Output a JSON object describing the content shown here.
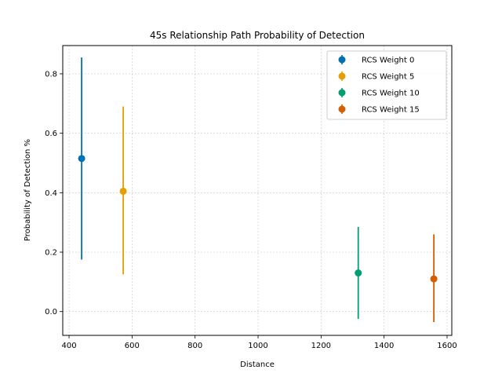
{
  "chart_data": {
    "type": "scatter",
    "title": "45s Relationship Path Probability of Detection",
    "xlabel": "Distance",
    "ylabel": "Probability of Detection %",
    "xlim": [
      380,
      1615
    ],
    "ylim": [
      -0.08,
      0.895
    ],
    "xticks": [
      400,
      600,
      800,
      1000,
      1200,
      1400,
      1600
    ],
    "yticks": [
      0.0,
      0.2,
      0.4,
      0.6,
      0.8
    ],
    "xtick_labels": [
      "400",
      "600",
      "800",
      "1000",
      "1200",
      "1400",
      "1600"
    ],
    "ytick_labels": [
      "0.0",
      "0.2",
      "0.4",
      "0.6",
      "0.8"
    ],
    "grid": true,
    "legend_position": "top-right",
    "series": [
      {
        "name": "RCS Weight 0",
        "color": "#0072B2",
        "x": 440,
        "y": 0.515,
        "err_low": 0.175,
        "err_high": 0.855
      },
      {
        "name": "RCS Weight 5",
        "color": "#E69F00",
        "x": 572,
        "y": 0.405,
        "err_low": 0.125,
        "err_high": 0.69
      },
      {
        "name": "RCS Weight 10",
        "color": "#009E73",
        "x": 1318,
        "y": 0.13,
        "err_low": -0.025,
        "err_high": 0.285
      },
      {
        "name": "RCS Weight 15",
        "color": "#D55E00",
        "x": 1558,
        "y": 0.11,
        "err_low": -0.035,
        "err_high": 0.26
      }
    ]
  }
}
